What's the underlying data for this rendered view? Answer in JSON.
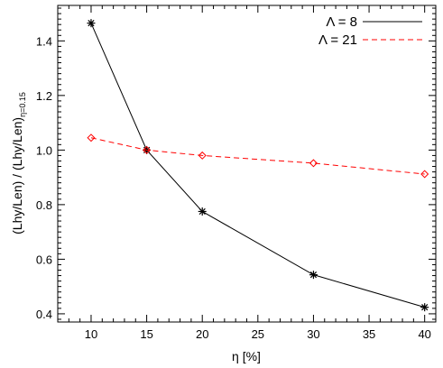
{
  "chart_data": {
    "type": "line",
    "xlabel": "η [%]",
    "ylabel": {
      "main": "(Lhy/Len) / (Lhy/Len)",
      "subscript": "η=0.15"
    },
    "xlim": [
      7,
      41
    ],
    "ylim": [
      0.37,
      1.53
    ],
    "x_ticks": [
      10,
      15,
      20,
      25,
      30,
      35,
      40
    ],
    "x_tick_labels": [
      "10",
      "15",
      "20",
      "25",
      "30",
      "35",
      "40"
    ],
    "y_ticks": [
      0.4,
      0.6,
      0.8,
      1.0,
      1.2,
      1.4
    ],
    "y_tick_labels": [
      "0.4",
      "0.6",
      "0.8",
      "1.0",
      "1.2",
      "1.4"
    ],
    "grid": false,
    "legend_position": "top-right",
    "series": [
      {
        "name": "Λ = 8",
        "color": "#000000",
        "line_style": "solid",
        "marker": "asterisk",
        "x": [
          10,
          15,
          20,
          30,
          40
        ],
        "y": [
          1.465,
          1.0,
          0.775,
          0.543,
          0.424
        ]
      },
      {
        "name": "Λ = 21",
        "color": "#ff0000",
        "line_style": "dashed",
        "marker": "diamond",
        "x": [
          10,
          15,
          20,
          30,
          40
        ],
        "y": [
          1.045,
          1.0,
          0.98,
          0.952,
          0.912
        ]
      }
    ]
  }
}
